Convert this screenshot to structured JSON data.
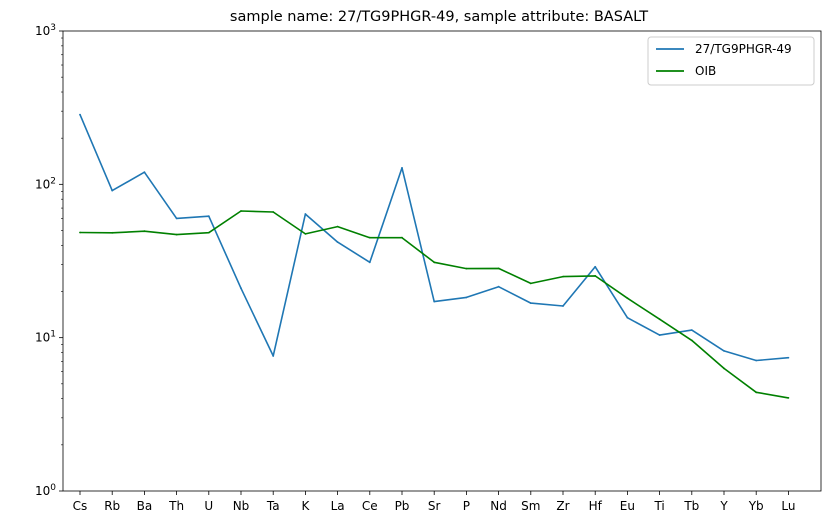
{
  "chart_data": {
    "type": "line",
    "title": "sample name: 27/TG9PHGR-49, sample attribute: BASALT",
    "xlabel": "",
    "ylabel": "",
    "yscale": "log",
    "ylim": [
      1,
      1000
    ],
    "grid": false,
    "legend_position": "top-right",
    "categories": [
      "Cs",
      "Rb",
      "Ba",
      "Th",
      "U",
      "Nb",
      "Ta",
      "K",
      "La",
      "Ce",
      "Pb",
      "Sr",
      "P",
      "Nd",
      "Sm",
      "Zr",
      "Hf",
      "Eu",
      "Ti",
      "Tb",
      "Y",
      "Yb",
      "Lu"
    ],
    "y_ticks": [
      {
        "value": 1,
        "base": "10",
        "exp": "0"
      },
      {
        "value": 10,
        "base": "10",
        "exp": "1"
      },
      {
        "value": 100,
        "base": "10",
        "exp": "2"
      },
      {
        "value": 1000,
        "base": "10",
        "exp": "3"
      }
    ],
    "series": [
      {
        "name": "27/TG9PHGR-49",
        "color": "#1f77b4",
        "values": [
          285,
          91,
          120,
          60,
          62,
          21,
          7.6,
          64,
          42,
          31,
          128,
          17.2,
          18.3,
          21.5,
          16.8,
          16.1,
          29,
          13.5,
          10.4,
          11.2,
          8.2,
          7.1,
          7.4
        ]
      },
      {
        "name": "OIB",
        "color": "#008000",
        "values": [
          48.5,
          48.3,
          49.5,
          47,
          48.4,
          67,
          66,
          47.5,
          53,
          44.9,
          44.9,
          31,
          28.2,
          28.3,
          22.6,
          25,
          25.3,
          18.1,
          13.2,
          9.6,
          6.3,
          4.4,
          4.05
        ]
      }
    ]
  }
}
